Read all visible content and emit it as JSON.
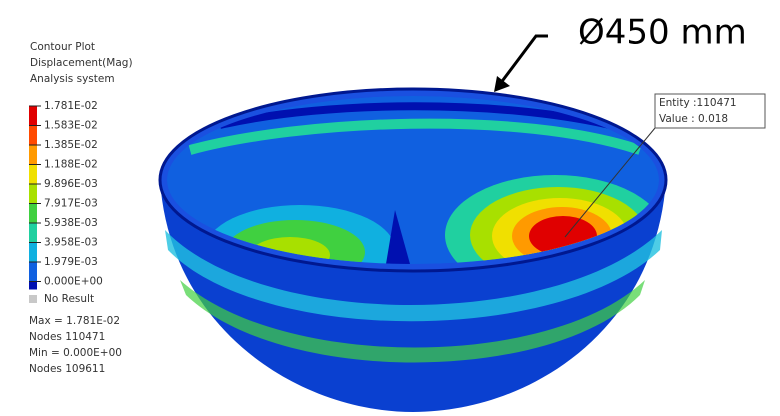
{
  "legend": {
    "title": [
      "Contour Plot",
      "Displacement(Mag)",
      "Analysis system"
    ],
    "levels": [
      {
        "label": "1.781E-02",
        "color": "#e00000"
      },
      {
        "label": "1.583E-02",
        "color": "#ff4a00"
      },
      {
        "label": "1.385E-02",
        "color": "#ff9a00"
      },
      {
        "label": "1.188E-02",
        "color": "#f0e000"
      },
      {
        "label": "9.896E-03",
        "color": "#a8e000"
      },
      {
        "label": "7.917E-03",
        "color": "#40d040"
      },
      {
        "label": "5.938E-03",
        "color": "#20d0a0"
      },
      {
        "label": "3.958E-03",
        "color": "#10b0e0"
      },
      {
        "label": "1.979E-03",
        "color": "#1060e0"
      },
      {
        "label": "0.000E+00",
        "color": "#0010b0"
      }
    ],
    "no_result": "No Result",
    "stats": [
      "Max = 1.781E-02",
      "Nodes 110471",
      "Min = 0.000E+00",
      "Nodes 109611"
    ]
  },
  "probe": {
    "lines": [
      "Entity :110471",
      "Value : 0.018"
    ]
  },
  "dimension": "Ø450 mm"
}
